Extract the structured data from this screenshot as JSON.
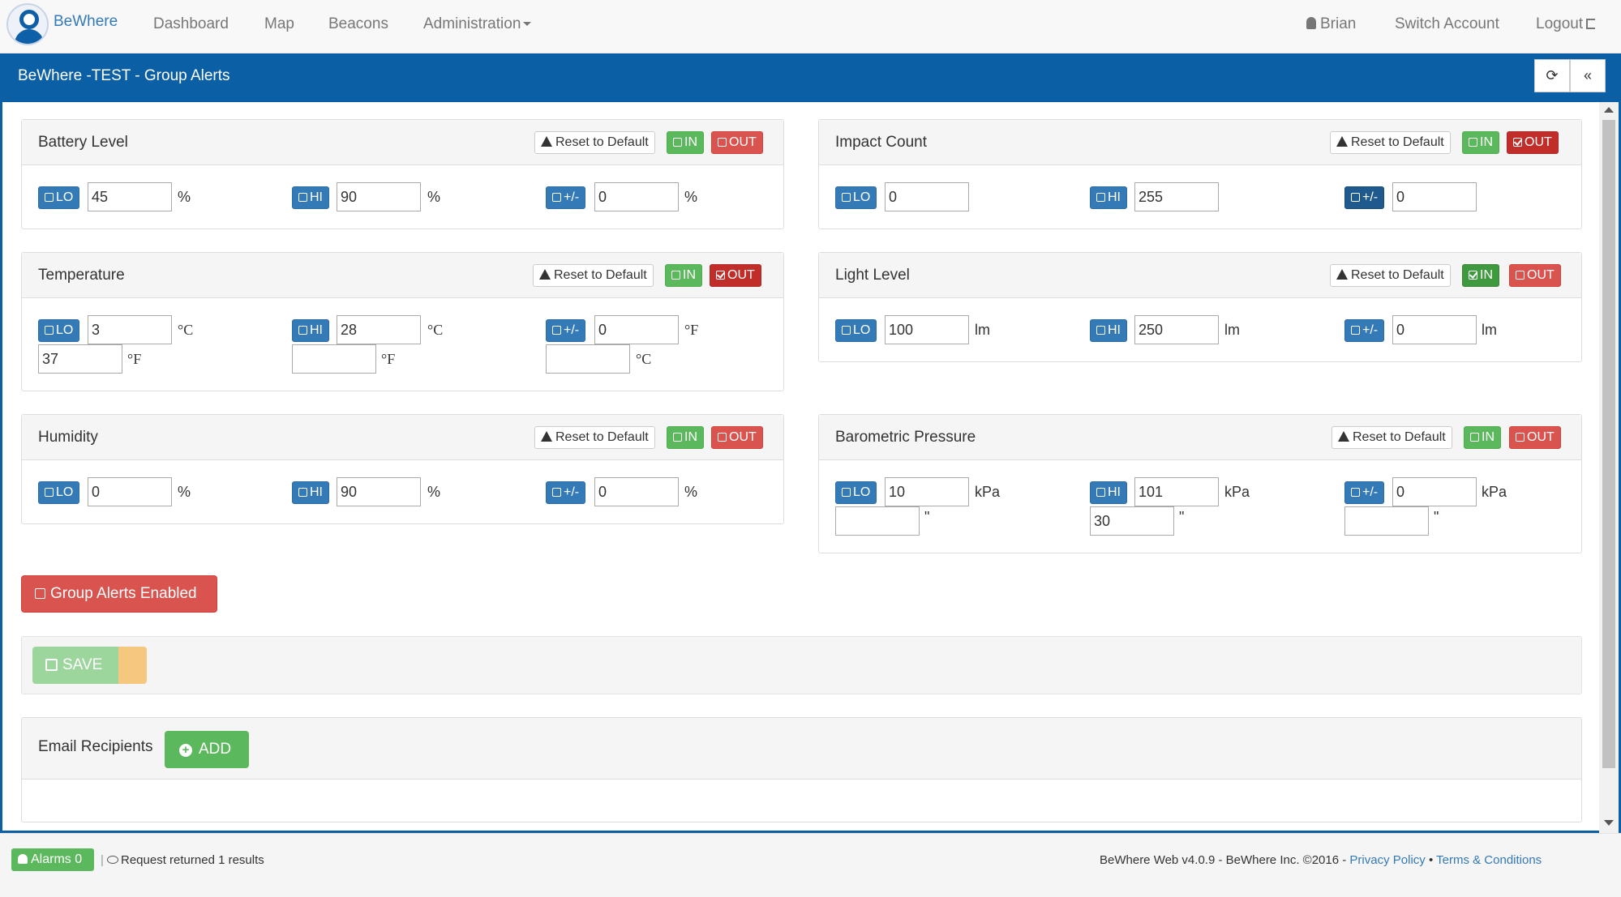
{
  "nav": {
    "brand": "BeWhere",
    "links": [
      "Dashboard",
      "Map",
      "Beacons",
      "Administration"
    ],
    "user": "Brian",
    "switch_account": "Switch Account",
    "logout": "Logout"
  },
  "panel": {
    "title": "BeWhere -TEST - Group Alerts"
  },
  "common": {
    "reset": "Reset to Default",
    "in": "IN",
    "out": "OUT",
    "lo": "LO",
    "hi": "HI",
    "pm": "+/-"
  },
  "cards": {
    "battery": {
      "title": "Battery Level",
      "lo": "45",
      "hi": "90",
      "pm": "0",
      "unit": "%"
    },
    "impact": {
      "title": "Impact Count",
      "lo": "0",
      "hi": "255",
      "pm": "0"
    },
    "temperature": {
      "title": "Temperature",
      "lo": "3",
      "hi": "28",
      "pm": "0",
      "lo_f": "37",
      "hi_f": "",
      "pm_c": "",
      "unit_c": "°C",
      "unit_f": "°F"
    },
    "light": {
      "title": "Light Level",
      "lo": "100",
      "hi": "250",
      "pm": "0",
      "unit": "lm"
    },
    "humidity": {
      "title": "Humidity",
      "lo": "0",
      "hi": "90",
      "pm": "0",
      "unit": "%"
    },
    "pressure": {
      "title": "Barometric Pressure",
      "lo": "10",
      "hi": "101",
      "pm": "0",
      "lo_in": "",
      "hi_in": "30",
      "pm_in": "",
      "unit": "kPa",
      "unit_in": "\""
    }
  },
  "group_alerts_label": "Group Alerts Enabled",
  "save_label": "SAVE",
  "email": {
    "title": "Email Recipients",
    "add_label": "ADD"
  },
  "footer": {
    "alarms": "Alarms 0",
    "request": "Request returned 1 results",
    "version": "BeWhere Web v4.0.9 - BeWhere Inc. ©2016 -",
    "privacy": "Privacy Policy",
    "bullet": "•",
    "terms": "Terms & Conditions"
  },
  "colors": {
    "primary": "#0b5fa5",
    "success": "#5cb85c",
    "danger": "#d9534f",
    "warning": "#f6c77e"
  }
}
